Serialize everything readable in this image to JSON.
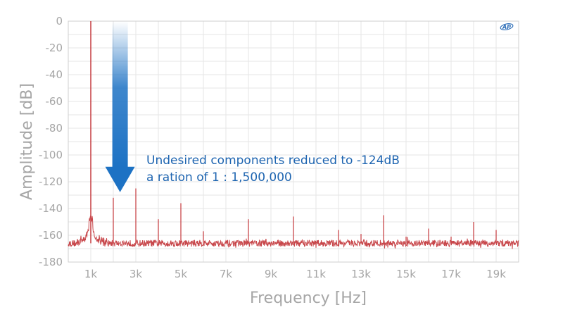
{
  "chart_data": {
    "type": "line",
    "xlabel": "Frequency [Hz]",
    "ylabel": "Amplitude [dB]",
    "xlim": [
      0,
      20000
    ],
    "ylim": [
      -180,
      0
    ],
    "x_ticks": [
      {
        "value": 1000,
        "label": "1k"
      },
      {
        "value": 3000,
        "label": "3k"
      },
      {
        "value": 5000,
        "label": "5k"
      },
      {
        "value": 7000,
        "label": "7k"
      },
      {
        "value": 9000,
        "label": "9k"
      },
      {
        "value": 11000,
        "label": "11k"
      },
      {
        "value": 13000,
        "label": "13k"
      },
      {
        "value": 15000,
        "label": "15k"
      },
      {
        "value": 17000,
        "label": "17k"
      },
      {
        "value": 19000,
        "label": "19k"
      }
    ],
    "y_ticks": [
      0,
      -20,
      -40,
      -60,
      -80,
      -100,
      -120,
      -140,
      -160,
      -180
    ],
    "grid": true,
    "noise_floor_db": -166,
    "series": [
      {
        "color": "#c8474b",
        "peaks": [
          {
            "x": 1000,
            "y": 0
          },
          {
            "x": 2000,
            "y": -132
          },
          {
            "x": 3000,
            "y": -125
          },
          {
            "x": 4000,
            "y": -148
          },
          {
            "x": 5000,
            "y": -136
          },
          {
            "x": 6000,
            "y": -157
          },
          {
            "x": 8000,
            "y": -148
          },
          {
            "x": 10000,
            "y": -146
          },
          {
            "x": 12000,
            "y": -156
          },
          {
            "x": 13000,
            "y": -159
          },
          {
            "x": 14000,
            "y": -145
          },
          {
            "x": 15000,
            "y": -161
          },
          {
            "x": 16000,
            "y": -155
          },
          {
            "x": 17000,
            "y": -161
          },
          {
            "x": 18000,
            "y": -150
          },
          {
            "x": 19000,
            "y": -156
          }
        ]
      }
    ],
    "annotation": {
      "lines": [
        "Undesired components reduced to -124dB",
        "a ration of  1 : 1,500,000"
      ],
      "arrow_x": 2300,
      "arrow_from_y": 0,
      "arrow_to_y": -132,
      "color": "#1d72c4"
    },
    "logo_text": "AP"
  }
}
